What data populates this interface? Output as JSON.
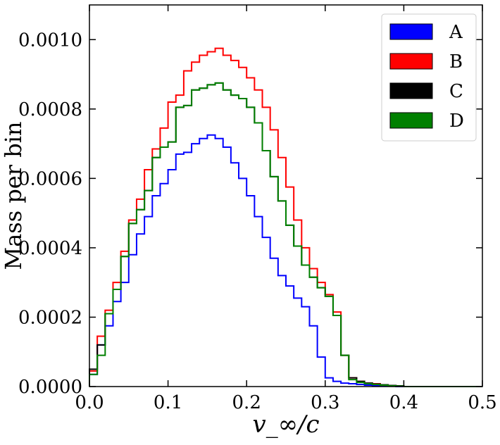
{
  "chart_data": {
    "type": "histogram-step",
    "title": "",
    "xlabel": "v_∞/c",
    "ylabel": "Mass per bin",
    "xlim": [
      0.0,
      0.5
    ],
    "ylim": [
      0.0,
      0.0011
    ],
    "xticks": [
      0.0,
      0.1,
      0.2,
      0.3,
      0.4,
      0.5
    ],
    "xtick_labels": [
      "0.0",
      "0.1",
      "0.2",
      "0.3",
      "0.4",
      "0.5"
    ],
    "yticks": [
      0.0,
      0.0002,
      0.0004,
      0.0006,
      0.0008,
      0.001
    ],
    "ytick_labels": [
      "0.0000",
      "0.0002",
      "0.0004",
      "0.0006",
      "0.0008",
      "0.0010"
    ],
    "grid": false,
    "legend_position": "top-right",
    "bin_width": 0.01,
    "bin_edges_start": 0.0,
    "series": [
      {
        "name": "A",
        "color": "#0000ff",
        "values": [
          3.5e-05,
          0.00012,
          0.000175,
          0.000245,
          0.0003,
          0.00038,
          0.00044,
          0.00049,
          0.00055,
          0.000585,
          0.000625,
          0.00067,
          0.000675,
          0.0007,
          0.000715,
          0.000725,
          0.000715,
          0.00069,
          0.000645,
          0.0006,
          0.00055,
          0.00049,
          0.00043,
          0.00037,
          0.00032,
          0.00029,
          0.000255,
          0.00023,
          0.000175,
          8.5e-05,
          2.5e-05,
          1.5e-05,
          1e-05,
          8e-06,
          6e-06,
          4e-06,
          3e-06,
          2e-06,
          1e-06,
          0.0,
          0.0,
          0.0,
          0.0,
          0.0,
          0.0,
          0.0,
          0.0,
          0.0,
          0.0,
          0.0
        ]
      },
      {
        "name": "B",
        "color": "#ff0000",
        "values": [
          4.5e-05,
          0.000145,
          0.00022,
          0.0003,
          0.00039,
          0.00048,
          0.00054,
          0.000625,
          0.000685,
          0.000745,
          0.00082,
          0.00084,
          0.00091,
          0.000935,
          0.000955,
          0.000965,
          0.000975,
          0.000955,
          0.00094,
          0.00092,
          0.00089,
          0.000855,
          0.000805,
          0.00074,
          0.00066,
          0.000575,
          0.00048,
          0.0004,
          0.00034,
          0.0003,
          0.000265,
          0.000215,
          9e-05,
          2.5e-05,
          1.5e-05,
          1e-05,
          8e-06,
          5e-06,
          3e-06,
          2e-06,
          0.0,
          0.0,
          0.0,
          0.0,
          0.0,
          0.0,
          0.0,
          0.0,
          0.0,
          0.0
        ]
      },
      {
        "name": "C",
        "color": "#000000",
        "values": [
          5e-05,
          0.00012,
          0.00021,
          0.00028,
          0.000375,
          0.00047,
          0.00051,
          0.000565,
          0.00066,
          0.00069,
          0.000705,
          0.000805,
          0.00081,
          0.000855,
          0.00086,
          0.00087,
          0.000875,
          0.000855,
          0.00084,
          0.00083,
          0.000805,
          0.00076,
          0.00068,
          0.000605,
          0.000535,
          0.000465,
          0.000405,
          0.00035,
          0.000315,
          0.000285,
          0.00026,
          0.000205,
          9e-05,
          2.5e-05,
          1.5e-05,
          1e-05,
          7e-06,
          5e-06,
          3e-06,
          2e-06,
          0.0,
          0.0,
          0.0,
          0.0,
          0.0,
          0.0,
          0.0,
          0.0,
          0.0,
          0.0
        ]
      },
      {
        "name": "D",
        "color": "#008000",
        "values": [
          3.5e-05,
          9e-05,
          0.00021,
          0.00028,
          0.000375,
          0.00047,
          0.00051,
          0.000565,
          0.00066,
          0.00069,
          0.000705,
          0.000805,
          0.00081,
          0.000855,
          0.00086,
          0.00087,
          0.000875,
          0.000855,
          0.00084,
          0.00083,
          0.000805,
          0.00076,
          0.00068,
          0.000605,
          0.000535,
          0.000465,
          0.000405,
          0.00035,
          0.000315,
          0.000285,
          0.00026,
          0.000205,
          9e-05,
          2e-05,
          1.2e-05,
          8e-06,
          6e-06,
          4e-06,
          2e-06,
          1e-06,
          0.0,
          0.0,
          0.0,
          0.0,
          0.0,
          0.0,
          0.0,
          0.0,
          0.0,
          0.0
        ]
      }
    ]
  }
}
